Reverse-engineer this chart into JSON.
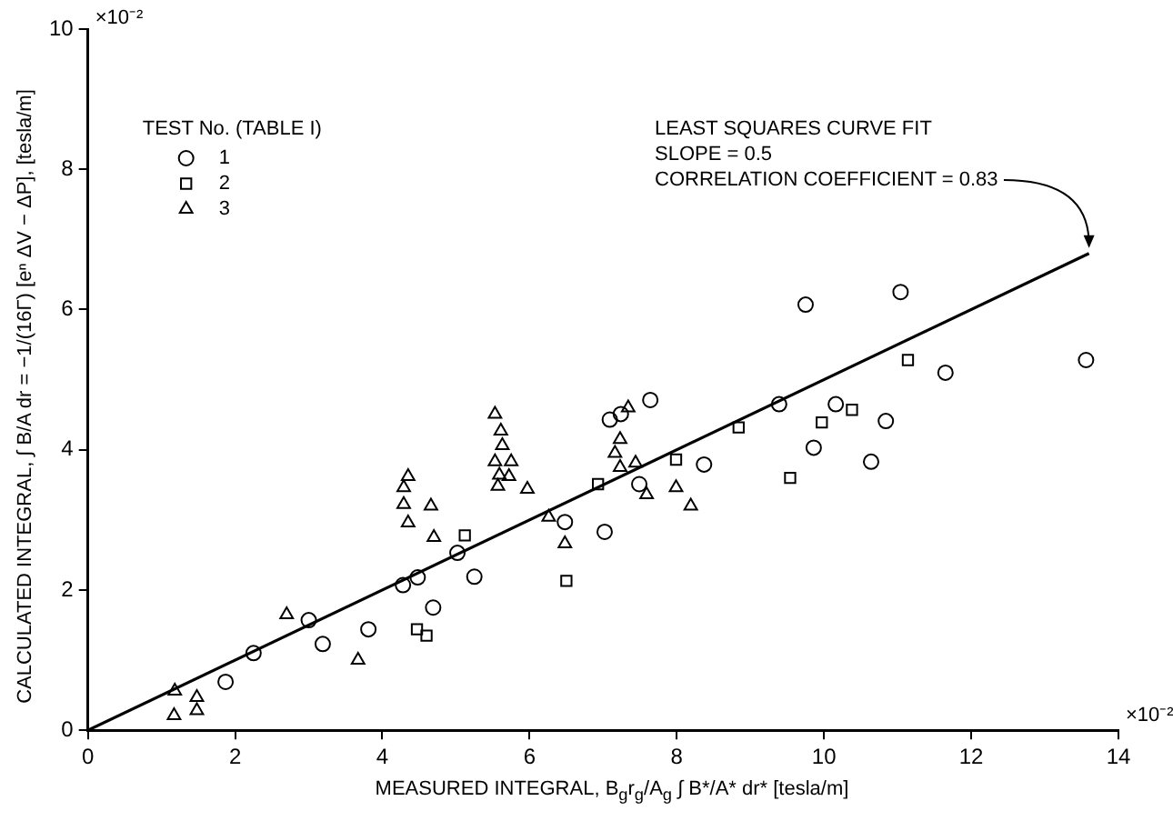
{
  "chart_data": {
    "type": "scatter",
    "xlabel": "MEASURED INTEGRAL, B$_{g}$r$_{g}$/A$_{g}$ ∫ B*/A* dr* [tesla/m]",
    "ylabel": "CALCULATED INTEGRAL, ∫ B/A dr = −1/(16Γ) [eⁿ ΔV − ΔP], [tesla/m]",
    "legend_title": "TEST No. (TABLE I)",
    "legend": "top left",
    "xlim": [
      0,
      14
    ],
    "xticks": [
      0,
      2,
      4,
      6,
      8,
      10,
      12,
      14
    ],
    "ylim": [
      0,
      10
    ],
    "yticks": [
      0,
      2,
      4,
      6,
      8,
      10
    ],
    "grid": false,
    "annotations": [
      "LEAST SQUARES CURVE FIT",
      "SLOPE = 0.5",
      {
        "text": "CORRELATION COEFFICIENT = 0.83",
        "x": 13.6,
        "y": 6.8
      },
      "×10⁻²",
      "×10⁻²"
    ],
    "series": [
      {
        "name": "1",
        "color": "#000000",
        "marker": "circle",
        "x": [
          1.87,
          2.25,
          3.0,
          3.19,
          3.81,
          4.28,
          4.48,
          4.69,
          5.02,
          5.25,
          6.48,
          7.02,
          7.09,
          7.24,
          7.64,
          7.49,
          8.37,
          9.39,
          9.86,
          9.75,
          11.04,
          13.56,
          11.65,
          10.16,
          10.84,
          10.64
        ],
        "values": [
          0.69,
          1.1,
          1.57,
          1.23,
          1.44,
          2.07,
          2.18,
          1.75,
          2.53,
          2.19,
          2.97,
          2.83,
          4.43,
          4.51,
          4.71,
          3.51,
          3.79,
          4.65,
          4.03,
          6.07,
          6.25,
          5.28,
          5.1,
          4.65,
          4.41,
          3.83
        ]
      },
      {
        "name": "2",
        "color": "#000000",
        "marker": "square",
        "x": [
          4.47,
          4.6,
          5.12,
          6.5,
          6.93,
          7.99,
          8.84,
          9.54,
          11.14,
          10.38,
          9.97
        ],
        "values": [
          1.44,
          1.35,
          2.78,
          2.13,
          3.51,
          3.86,
          4.32,
          3.6,
          5.28,
          4.57,
          4.39
        ]
      },
      {
        "name": "3",
        "color": "#000000",
        "marker": "triangle",
        "x": [
          1.18,
          1.17,
          1.48,
          1.48,
          2.7,
          3.67,
          4.35,
          4.29,
          4.29,
          4.66,
          4.35,
          4.7,
          5.53,
          5.61,
          5.63,
          5.53,
          5.75,
          5.59,
          5.72,
          5.57,
          5.97,
          6.26,
          6.48,
          7.34,
          7.23,
          7.16,
          7.23,
          7.44,
          7.59,
          7.99,
          8.19
        ],
        "values": [
          0.56,
          0.21,
          0.47,
          0.28,
          1.65,
          1.0,
          3.62,
          3.46,
          3.22,
          3.2,
          2.96,
          2.75,
          4.51,
          4.27,
          4.06,
          3.83,
          3.83,
          3.64,
          3.62,
          3.48,
          3.44,
          3.04,
          2.66,
          4.6,
          4.15,
          3.95,
          3.75,
          3.81,
          3.36,
          3.46,
          3.2
        ]
      },
      {
        "type": "line",
        "color": "#000000",
        "marker": "none",
        "line_style": "solid",
        "x": [
          0,
          13.6
        ],
        "values": [
          0,
          6.8
        ]
      }
    ]
  }
}
